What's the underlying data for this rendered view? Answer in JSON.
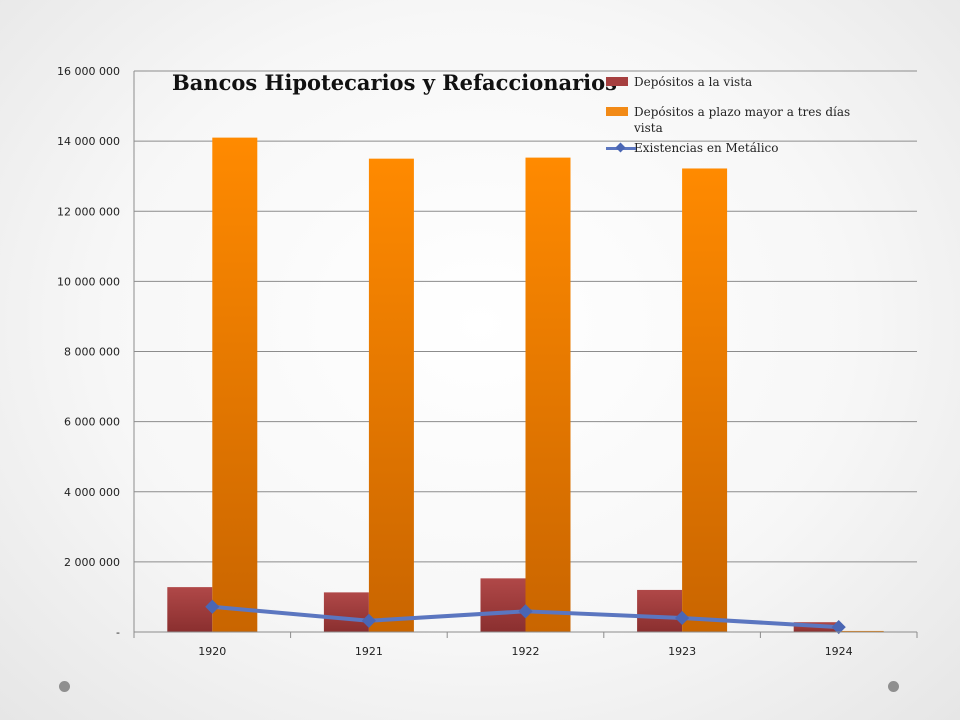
{
  "chart_data": {
    "type": "bar",
    "title": "Bancos Hipotecarios y Refaccionarios",
    "categories": [
      "1920",
      "1921",
      "1922",
      "1923",
      "1924"
    ],
    "series": [
      {
        "name": "Depósitos a la vista",
        "kind": "bar",
        "color": "#a63f3f",
        "values": [
          1280000,
          1130000,
          1530000,
          1200000,
          280000
        ]
      },
      {
        "name": "Depósitos a plazo mayor a tres días vista",
        "kind": "bar",
        "color": "#f28a16",
        "values": [
          14100000,
          13500000,
          13530000,
          13220000,
          30000
        ]
      },
      {
        "name": "Existencias en Metálico",
        "kind": "line",
        "color": "#5b76c0",
        "values": [
          720000,
          320000,
          590000,
          400000,
          140000
        ]
      }
    ],
    "yticks": [
      "-",
      "2 000 000",
      "4 000 000",
      "6 000 000",
      "8 000 000",
      "10 000 000",
      "12 000 000",
      "14 000 000",
      "16 000 000"
    ],
    "ylim": [
      0,
      16000000
    ],
    "grid": true,
    "legend": "top-right"
  }
}
